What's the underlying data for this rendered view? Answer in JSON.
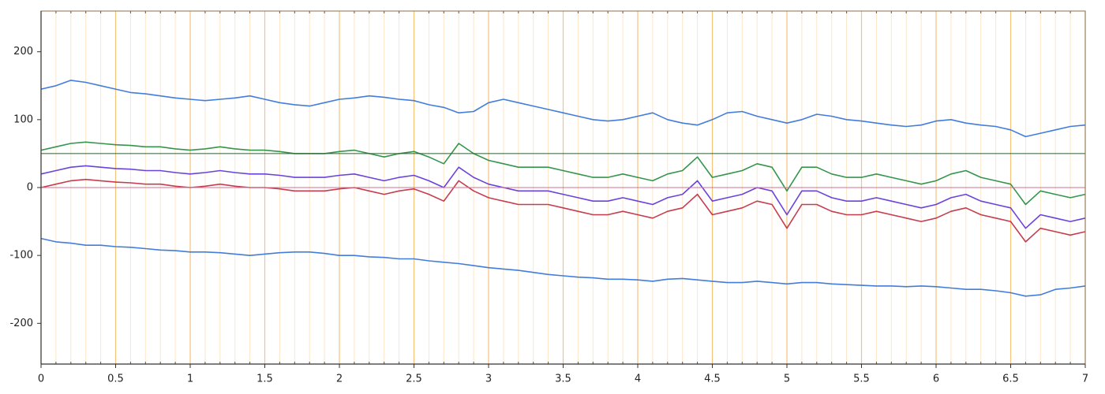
{
  "chart_data": {
    "type": "line",
    "x": [
      0,
      0.1,
      0.2,
      0.3,
      0.4,
      0.5,
      0.6,
      0.7,
      0.8,
      0.9,
      1,
      1.1,
      1.2,
      1.3,
      1.4,
      1.5,
      1.6,
      1.7,
      1.8,
      1.9,
      2,
      2.1,
      2.2,
      2.3,
      2.4,
      2.5,
      2.6,
      2.7,
      2.8,
      2.9,
      3,
      3.1,
      3.2,
      3.3,
      3.4,
      3.5,
      3.6,
      3.7,
      3.8,
      3.9,
      4,
      4.1,
      4.2,
      4.3,
      4.4,
      4.5,
      4.6,
      4.7,
      4.8,
      4.9,
      5,
      5.1,
      5.2,
      5.3,
      5.4,
      5.5,
      5.6,
      5.7,
      5.8,
      5.9,
      6,
      6.1,
      6.2,
      6.3,
      6.4,
      6.5,
      6.6,
      6.7,
      6.8,
      6.9,
      7
    ],
    "series": [
      {
        "color": "#2f6fd8",
        "values": [
          145,
          150,
          158,
          155,
          150,
          145,
          140,
          138,
          135,
          132,
          130,
          128,
          130,
          132,
          135,
          130,
          125,
          122,
          120,
          125,
          130,
          132,
          135,
          133,
          130,
          128,
          122,
          118,
          110,
          112,
          125,
          130,
          125,
          120,
          115,
          110,
          105,
          100,
          98,
          100,
          105,
          110,
          100,
          95,
          92,
          100,
          110,
          112,
          105,
          100,
          95,
          100,
          108,
          105,
          100,
          98,
          95,
          92,
          90,
          92,
          98,
          100,
          95,
          92,
          90,
          85,
          75,
          80,
          85,
          90,
          92
        ]
      },
      {
        "color": "#2f6fd8",
        "values": [
          -75,
          -80,
          -82,
          -85,
          -85,
          -87,
          -88,
          -90,
          -92,
          -93,
          -95,
          -95,
          -96,
          -98,
          -100,
          -98,
          -96,
          -95,
          -95,
          -97,
          -100,
          -100,
          -102,
          -103,
          -105,
          -105,
          -108,
          -110,
          -112,
          -115,
          -118,
          -120,
          -122,
          -125,
          -128,
          -130,
          -132,
          -133,
          -135,
          -135,
          -136,
          -138,
          -135,
          -134,
          -136,
          -138,
          -140,
          -140,
          -138,
          -140,
          -142,
          -140,
          -140,
          -142,
          -143,
          -144,
          -145,
          -145,
          -146,
          -145,
          -146,
          -148,
          -150,
          -150,
          -152,
          -155,
          -160,
          -158,
          -150,
          -148,
          -145
        ]
      },
      {
        "color": "#1f8a3a",
        "values": [
          55,
          60,
          65,
          67,
          65,
          63,
          62,
          60,
          60,
          57,
          55,
          57,
          60,
          57,
          55,
          55,
          53,
          50,
          50,
          50,
          53,
          55,
          50,
          45,
          50,
          53,
          45,
          35,
          65,
          50,
          40,
          35,
          30,
          30,
          30,
          25,
          20,
          15,
          15,
          20,
          15,
          10,
          20,
          25,
          45,
          15,
          20,
          25,
          35,
          30,
          -5,
          30,
          30,
          20,
          15,
          15,
          20,
          15,
          10,
          5,
          10,
          20,
          25,
          15,
          10,
          5,
          -25,
          -5,
          -10,
          -15,
          -10
        ]
      },
      {
        "color": "#c0283a",
        "values": [
          0,
          5,
          10,
          12,
          10,
          8,
          7,
          5,
          5,
          2,
          0,
          2,
          5,
          2,
          0,
          0,
          -2,
          -5,
          -5,
          -5,
          -2,
          0,
          -5,
          -10,
          -5,
          -2,
          -10,
          -20,
          10,
          -5,
          -15,
          -20,
          -25,
          -25,
          -25,
          -30,
          -35,
          -40,
          -40,
          -35,
          -40,
          -45,
          -35,
          -30,
          -10,
          -40,
          -35,
          -30,
          -20,
          -25,
          -60,
          -25,
          -25,
          -35,
          -40,
          -40,
          -35,
          -40,
          -45,
          -50,
          -45,
          -35,
          -30,
          -40,
          -45,
          -50,
          -80,
          -60,
          -65,
          -70,
          -65
        ]
      },
      {
        "color": "#5a2fd8",
        "values": [
          20,
          25,
          30,
          32,
          30,
          28,
          27,
          25,
          25,
          22,
          20,
          22,
          25,
          22,
          20,
          20,
          18,
          15,
          15,
          15,
          18,
          20,
          15,
          10,
          15,
          18,
          10,
          0,
          30,
          15,
          5,
          0,
          -5,
          -5,
          -5,
          -10,
          -15,
          -20,
          -20,
          -15,
          -20,
          -25,
          -15,
          -10,
          10,
          -20,
          -15,
          -10,
          0,
          -5,
          -40,
          -5,
          -5,
          -15,
          -20,
          -20,
          -15,
          -20,
          -25,
          -30,
          -25,
          -15,
          -10,
          -20,
          -25,
          -30,
          -60,
          -40,
          -45,
          -50,
          -45
        ]
      }
    ],
    "xlim": [
      0,
      7
    ],
    "ylim": [
      -260,
      260
    ],
    "xticks": [
      0,
      0.5,
      1,
      1.5,
      2,
      2.5,
      3,
      3.5,
      4,
      4.5,
      5,
      5.5,
      6,
      6.5,
      7
    ],
    "minor_xticks": [
      0.1,
      0.2,
      0.3,
      0.4,
      0.6,
      0.7,
      0.8,
      0.9,
      1.1,
      1.2,
      1.3,
      1.4,
      1.6,
      1.7,
      1.8,
      1.9,
      2.1,
      2.2,
      2.3,
      2.4,
      2.6,
      2.7,
      2.8,
      2.9,
      3.1,
      3.2,
      3.3,
      3.4,
      3.6,
      3.7,
      3.8,
      3.9,
      4.1,
      4.2,
      4.3,
      4.4,
      4.6,
      4.7,
      4.8,
      4.9,
      5.1,
      5.2,
      5.3,
      5.4,
      5.6,
      5.7,
      5.8,
      5.9,
      6.1,
      6.2,
      6.3,
      6.4,
      6.6,
      6.7,
      6.8,
      6.9
    ],
    "yticks": [
      -200,
      -100,
      0,
      100,
      200
    ],
    "grid": true,
    "grid_color": "#f7c27a",
    "minor_grid_color": "#fde6c6",
    "hlines": [
      {
        "value": 50,
        "color": "#2e5e2e"
      },
      {
        "value": 0,
        "color": "#d07090"
      }
    ]
  }
}
